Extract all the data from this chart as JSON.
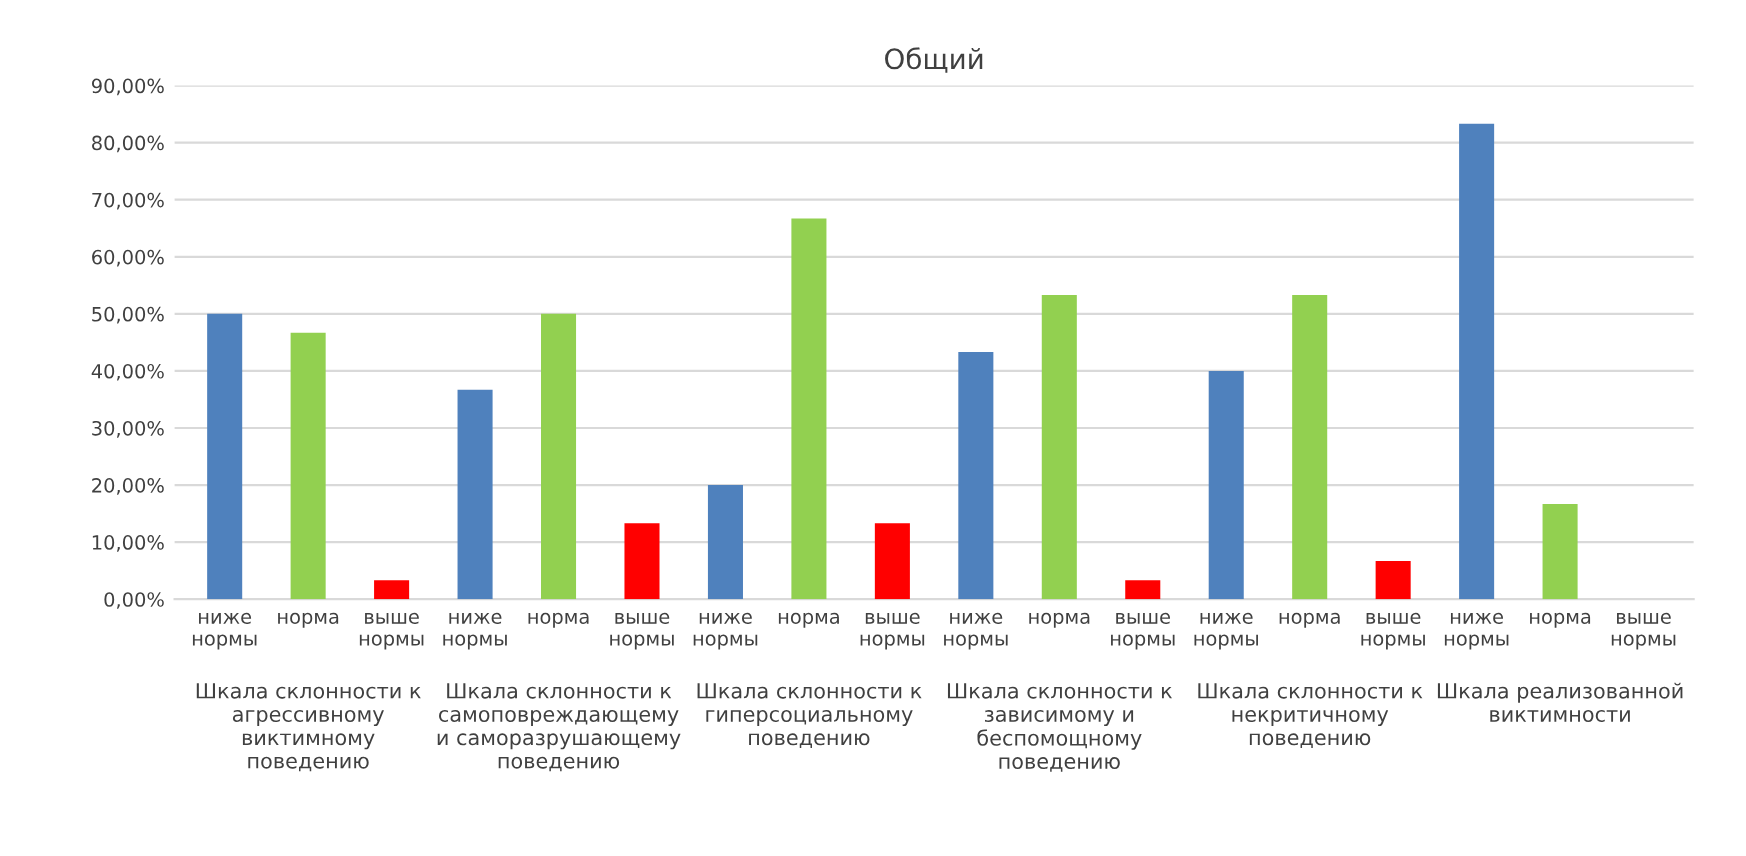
{
  "chart_data": {
    "type": "bar",
    "title": "Общий",
    "categories": [
      "ниже\nнормы",
      "норма",
      "выше\nнормы",
      "ниже\nнормы",
      "норма",
      "выше\nнормы",
      "ниже\nнормы",
      "норма",
      "выше\nнормы",
      "ниже\nнормы",
      "норма",
      "выше\nнормы",
      "ниже\nнормы",
      "норма",
      "выше\nнормы",
      "ниже\nнормы",
      "норма",
      "выше\nнормы"
    ],
    "values": [
      50,
      46.7,
      3.3,
      36.7,
      50,
      13.3,
      20,
      66.7,
      13.3,
      43.3,
      53.3,
      3.3,
      40,
      53.3,
      6.7,
      83.3,
      16.7,
      0
    ],
    "colors": [
      "#4f81bd",
      "#92d050",
      "#ff0000",
      "#4f81bd",
      "#92d050",
      "#ff0000",
      "#4f81bd",
      "#92d050",
      "#ff0000",
      "#4f81bd",
      "#92d050",
      "#ff0000",
      "#4f81bd",
      "#92d050",
      "#ff0000",
      "#4f81bd",
      "#92d050",
      "#ff0000"
    ],
    "annotations": [
      "Шкала склонности к\nагрессивному\nвиктимному\nповедению",
      "Шкала склонности к\nсамоповреждающему\nи саморазрушающему\nповедению",
      "Шкала склонности к\nгиперсоциальному\nповедению",
      "Шкала склонности к\nзависимому и\nбеспомощному\nповедению",
      "Шкала склонности к\nнекритичному\nповедению",
      "Шкала реализованной\nвиктимности"
    ],
    "ylim": [
      0,
      90
    ],
    "yticks": [
      {
        "value": 0,
        "label": "0,00%"
      },
      {
        "value": 10,
        "label": "10,00%"
      },
      {
        "value": 20,
        "label": "20,00%"
      },
      {
        "value": 30,
        "label": "30,00%"
      },
      {
        "value": 40,
        "label": "40,00%"
      },
      {
        "value": 50,
        "label": "50,00%"
      },
      {
        "value": 60,
        "label": "60,00%"
      },
      {
        "value": 70,
        "label": "70,00%"
      },
      {
        "value": 80,
        "label": "80,00%"
      },
      {
        "value": 90,
        "label": "90,00%"
      }
    ],
    "grid": "y",
    "legend": false
  }
}
